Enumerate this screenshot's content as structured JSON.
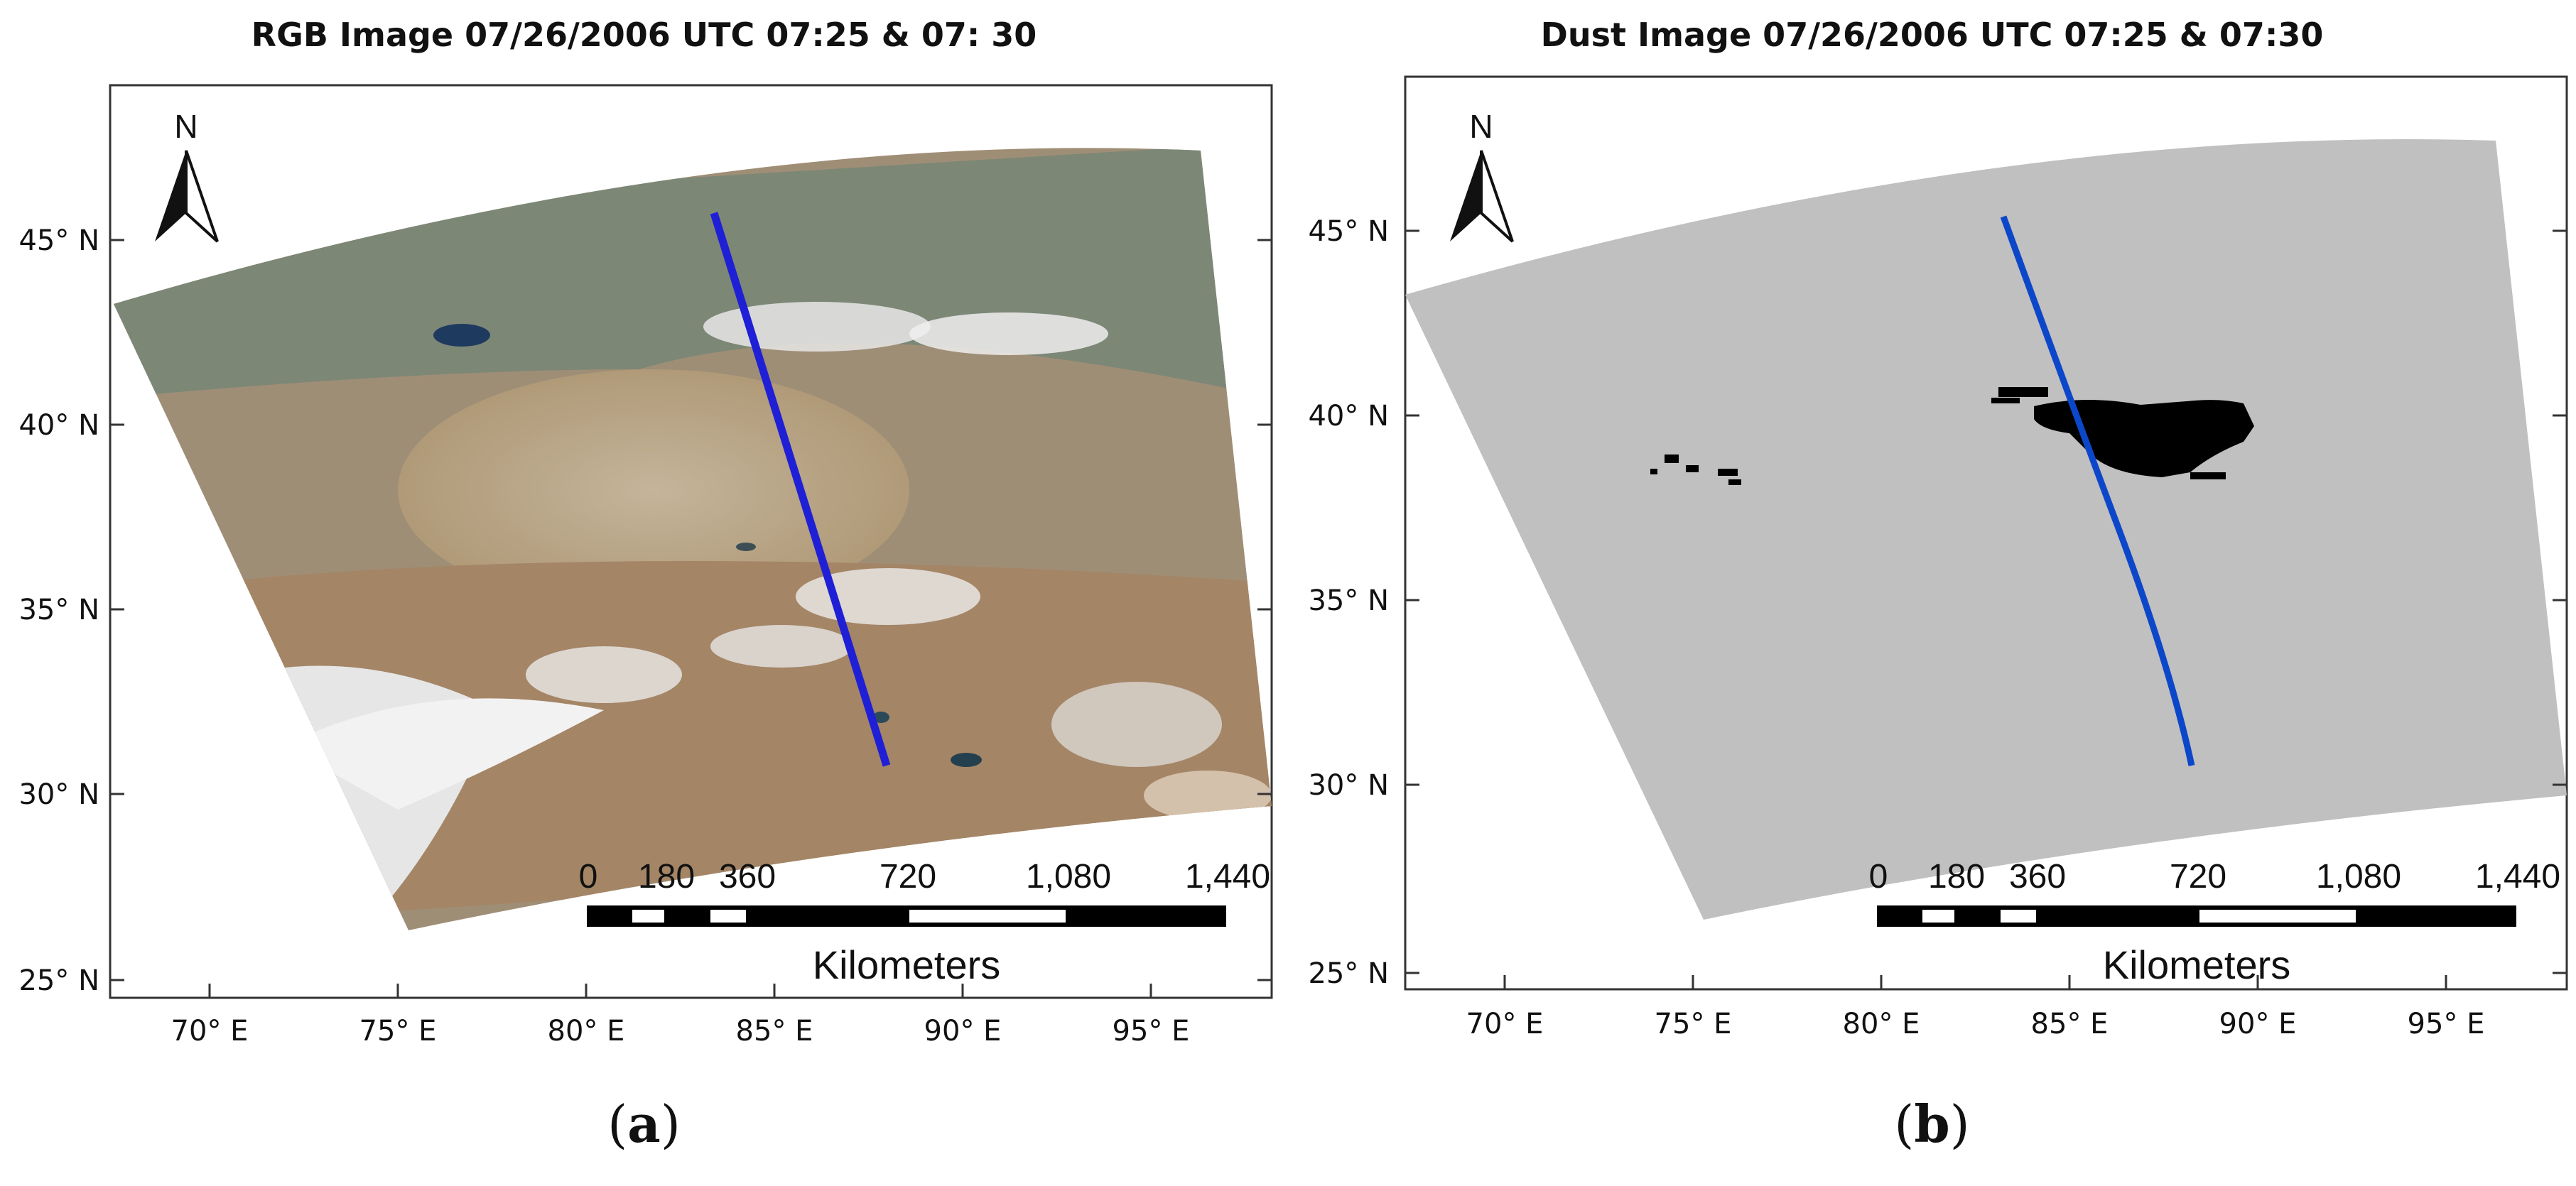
{
  "panels": [
    {
      "id": "a",
      "title": "RGB Image 07/26/2006 UTC 07:25 & 07: 30",
      "caption_letter": "a",
      "north_label": "N",
      "lat_ticks": [
        "25° N",
        "30° N",
        "35° N",
        "40° N",
        "45° N"
      ],
      "lon_ticks": [
        "70° E",
        "75° E",
        "80° E",
        "85° E",
        "90° E",
        "95° E"
      ],
      "scale_bar": {
        "labels": [
          "0",
          "180",
          "360",
          "720",
          "1,080",
          "1,440"
        ],
        "unit": "Kilometers"
      },
      "track_color": "#1f1fd6",
      "dust_color": "#000000"
    },
    {
      "id": "b",
      "title": "Dust Image 07/26/2006 UTC 07:25 & 07:30",
      "caption_letter": "b",
      "north_label": "N",
      "lat_ticks": [
        "25° N",
        "30° N",
        "35° N",
        "40° N",
        "45° N"
      ],
      "lon_ticks": [
        "70° E",
        "75° E",
        "80° E",
        "85° E",
        "90° E",
        "95° E"
      ],
      "scale_bar": {
        "labels": [
          "0",
          "180",
          "360",
          "720",
          "1,080",
          "1,440"
        ],
        "unit": "Kilometers"
      },
      "track_color": "#0d47c9",
      "dust_color": "#000000"
    }
  ]
}
